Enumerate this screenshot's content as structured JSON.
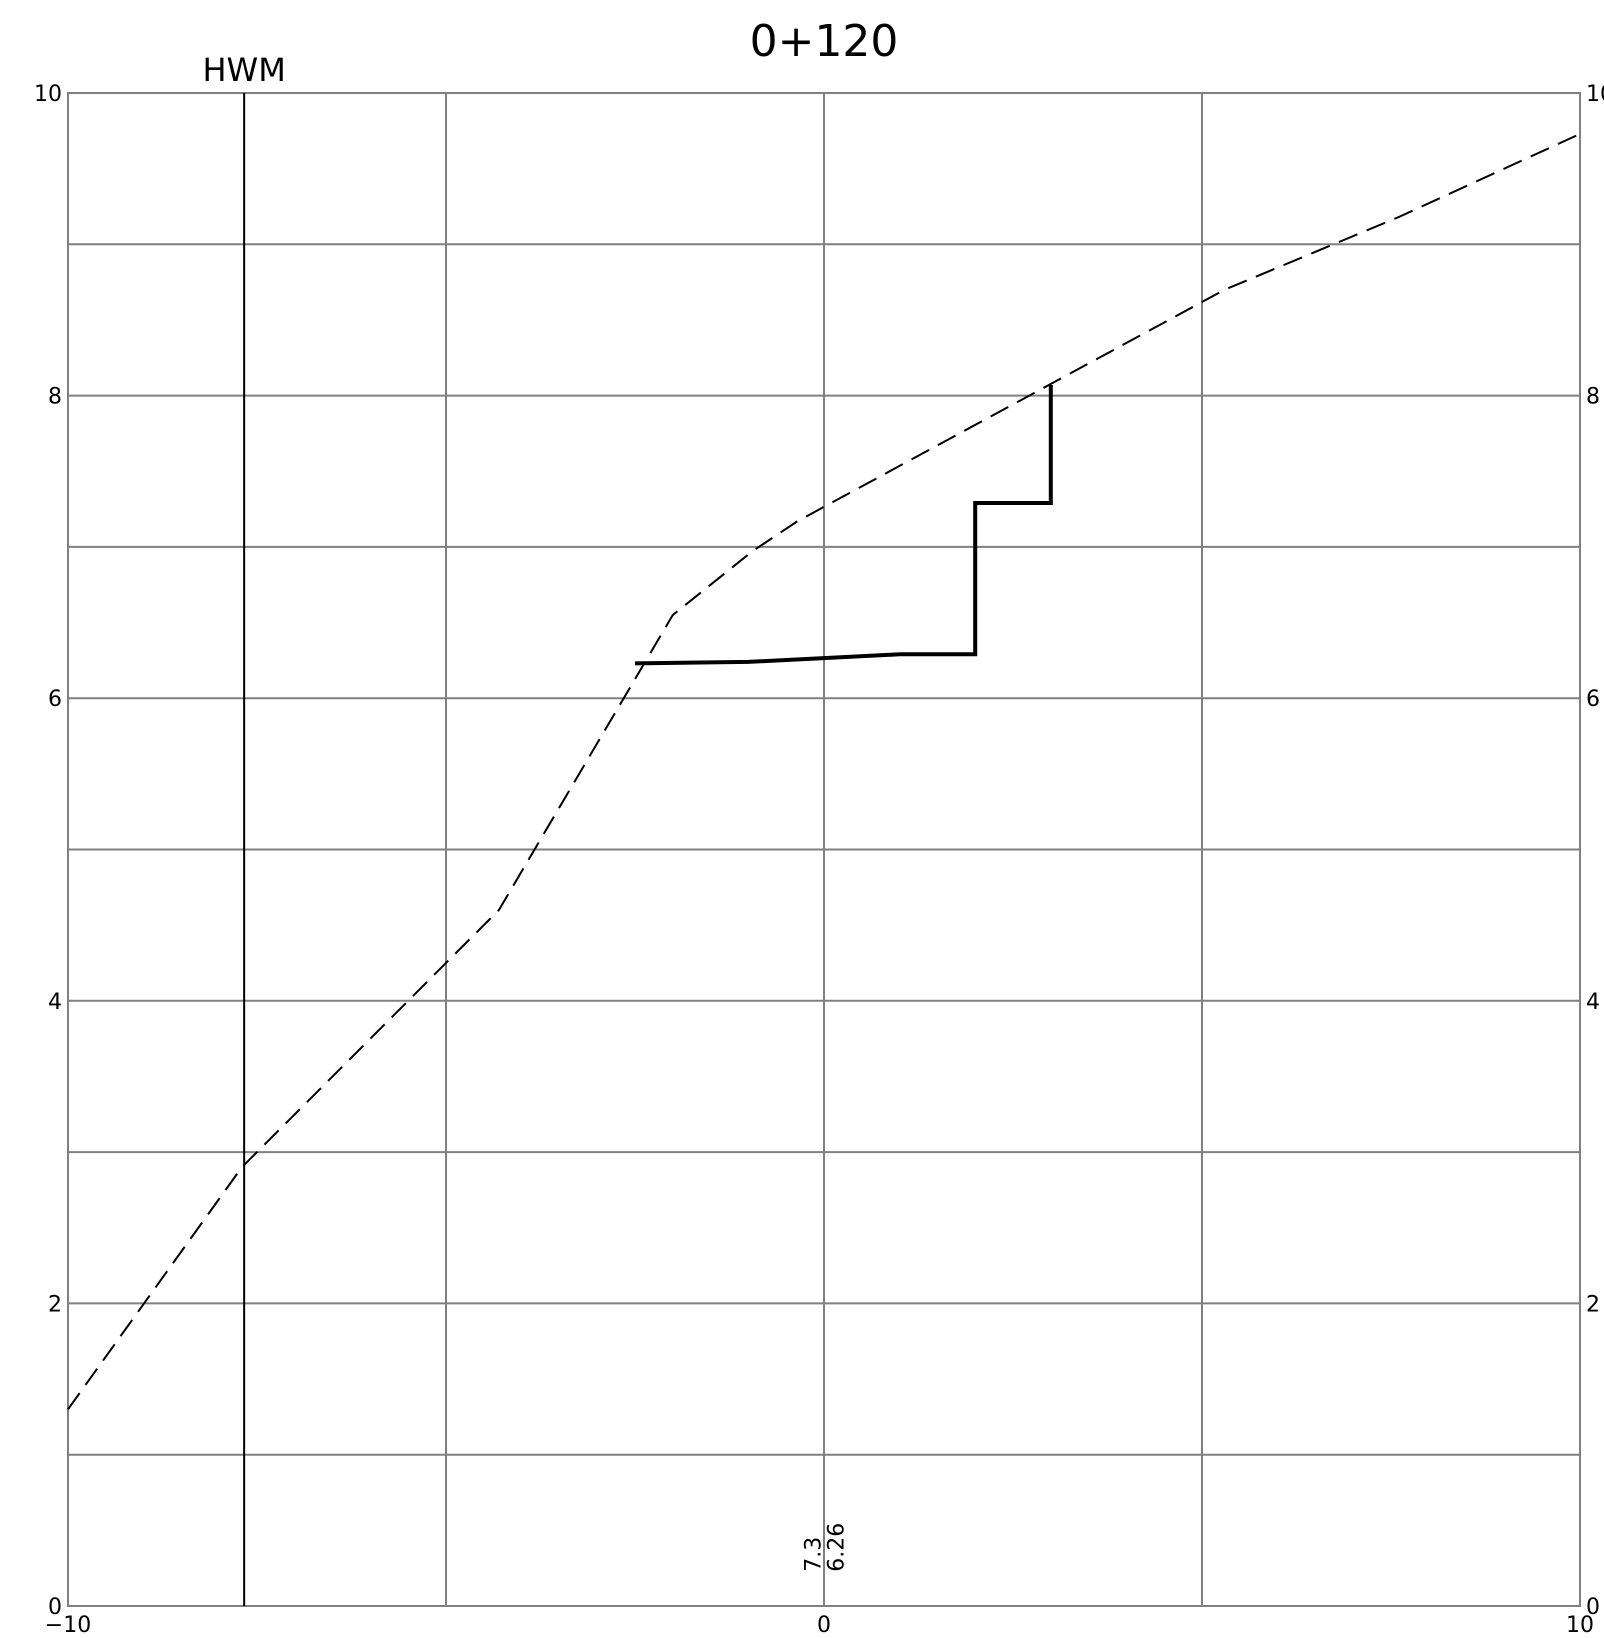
{
  "chart_data": {
    "type": "line",
    "title": "0+120",
    "xlabel": "",
    "ylabel": "",
    "xlim": [
      -10,
      10
    ],
    "ylim": [
      0,
      10
    ],
    "x_grid_step": 5,
    "y_grid_step": 1,
    "grid": true,
    "x_tick_labels": [
      {
        "x": -10,
        "label": "−10"
      },
      {
        "x": 0,
        "label": "0"
      },
      {
        "x": 10,
        "label": "10"
      }
    ],
    "y_tick_labels": [
      "0",
      "2",
      "4",
      "6",
      "8",
      "10"
    ],
    "y_tick_values": [
      0,
      2,
      4,
      6,
      8,
      10
    ],
    "series": [
      {
        "style": "dashed",
        "color": "#000000",
        "x": [
          -10,
          -7.7,
          -4.3,
          -2.0,
          -0.95,
          -0.35,
          5.3,
          7.6,
          10
        ],
        "y": [
          1.3,
          2.9,
          4.6,
          6.55,
          6.97,
          7.17,
          8.7,
          9.18,
          9.73
        ]
      },
      {
        "style": "solid-thick",
        "color": "#000000",
        "x": [
          -2.5,
          -1.0,
          1.0,
          2.0,
          2.0,
          3.0,
          3.0
        ],
        "y": [
          6.23,
          6.24,
          6.29,
          6.29,
          7.29,
          7.29,
          8.07
        ]
      }
    ],
    "reference_line": {
      "x": -7.67,
      "label": "HWM"
    },
    "annotations": [
      {
        "text": "7.3",
        "x": -0.15,
        "y": 0.2
      },
      {
        "text": "6.26",
        "x": 0.15,
        "y": 0.2
      }
    ]
  }
}
